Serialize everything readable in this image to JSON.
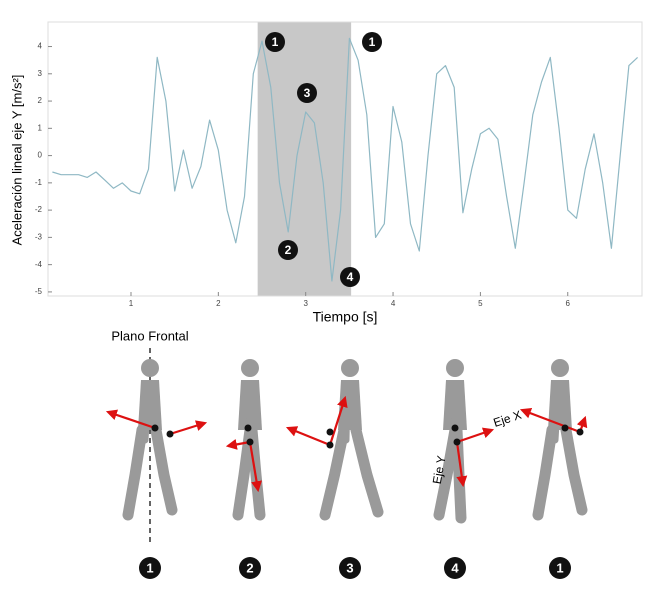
{
  "chart_data": {
    "type": "line",
    "y_label": "Aceleración lineal eje Y [m/s²]",
    "x_label": "Tiempo [s]",
    "x": [
      0.1,
      0.2,
      0.3,
      0.4,
      0.5,
      0.6,
      0.7,
      0.8,
      0.9,
      1.0,
      1.1,
      1.2,
      1.3,
      1.4,
      1.5,
      1.6,
      1.7,
      1.8,
      1.9,
      2.0,
      2.1,
      2.2,
      2.3,
      2.4,
      2.5,
      2.6,
      2.7,
      2.8,
      2.9,
      3.0,
      3.1,
      3.2,
      3.3,
      3.4,
      3.5,
      3.6,
      3.7,
      3.8,
      3.9,
      4.0,
      4.1,
      4.2,
      4.3,
      4.4,
      4.5,
      4.6,
      4.7,
      4.8,
      4.9,
      5.0,
      5.1,
      5.2,
      5.3,
      5.4,
      5.5,
      5.6,
      5.7,
      5.8,
      5.9,
      6.0,
      6.1,
      6.2,
      6.3,
      6.4,
      6.5,
      6.6,
      6.7,
      6.8
    ],
    "series": [
      {
        "color": "#8fb8c4",
        "values": [
          -0.6,
          -0.7,
          -0.7,
          -0.7,
          -0.8,
          -0.6,
          -0.9,
          -1.2,
          -1.0,
          -1.3,
          -1.4,
          -0.5,
          3.6,
          2.0,
          -1.3,
          0.2,
          -1.2,
          -0.4,
          1.3,
          0.2,
          -2.0,
          -3.2,
          -1.5,
          3.0,
          4.2,
          2.5,
          -1.0,
          -2.8,
          0.0,
          1.6,
          1.2,
          -1.0,
          -4.6,
          -2.0,
          4.3,
          3.5,
          1.5,
          -3.0,
          -2.5,
          1.8,
          0.5,
          -2.5,
          -3.5,
          0.0,
          3.0,
          3.3,
          2.5,
          -2.1,
          -0.5,
          0.8,
          1.0,
          0.6,
          -1.5,
          -3.4,
          -1.0,
          1.5,
          2.7,
          3.6,
          1.0,
          -2.0,
          -2.3,
          -0.5,
          0.8,
          -1.0,
          -3.4,
          0.0,
          3.3,
          3.6
        ]
      }
    ],
    "xlim": [
      0.05,
      6.85
    ],
    "xticks": [
      1,
      2,
      3,
      4,
      5,
      6
    ],
    "ylim": [
      -5.15,
      4.9
    ],
    "yticks": [
      -5,
      -4,
      -3,
      -2,
      -1,
      0,
      1,
      2,
      3,
      4
    ],
    "highlight": [
      2.45,
      3.52
    ],
    "highlight_color": "#c8c8c8",
    "annotations": [
      "1",
      "1",
      "3",
      "2",
      "4"
    ]
  },
  "diagram": {
    "plane_label": "Plano Frontal",
    "axis_x_label": "Eje X",
    "axis_y_label": "Eje Y",
    "steps": [
      "1",
      "2",
      "3",
      "4",
      "1"
    ]
  }
}
